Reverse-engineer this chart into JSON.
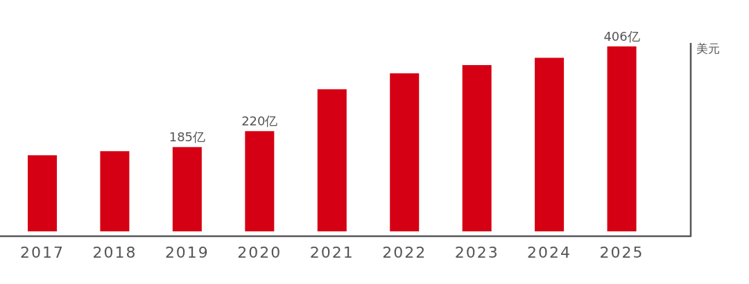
{
  "chart_data": {
    "type": "bar",
    "ylabel": "美元",
    "categories": [
      "2017",
      "2018",
      "2019",
      "2020",
      "2021",
      "2022",
      "2023",
      "2024",
      "2025"
    ],
    "values": [
      167,
      176,
      185,
      220,
      312,
      347,
      365,
      381,
      406
    ],
    "value_labels": [
      null,
      null,
      "185亿",
      "220亿",
      null,
      null,
      null,
      null,
      "406亿"
    ],
    "color": "#d50013"
  }
}
